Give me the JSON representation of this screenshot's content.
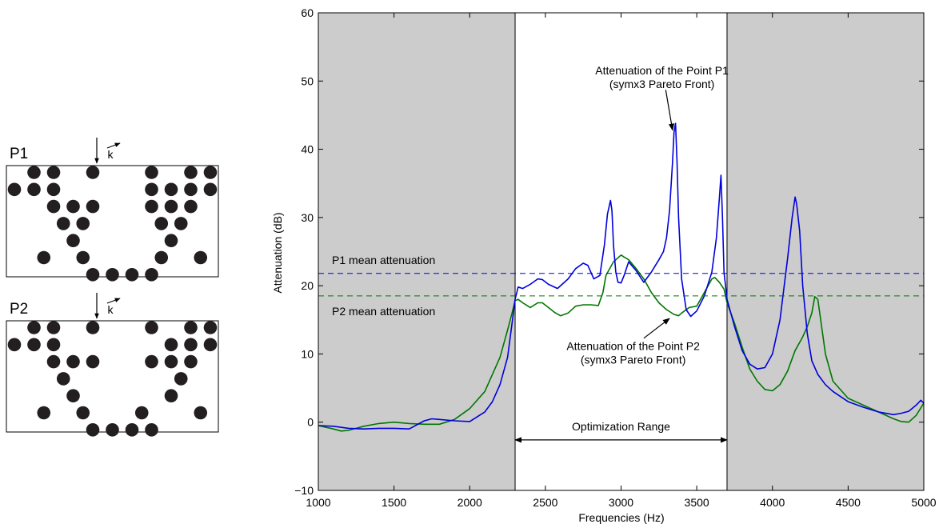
{
  "diagrams": [
    {
      "label": "P1",
      "wave_label": "k",
      "cylinders": [
        [
          1,
          0
        ],
        [
          2,
          0
        ],
        [
          4,
          0
        ],
        [
          7,
          0
        ],
        [
          9,
          0
        ],
        [
          10,
          0
        ],
        [
          0,
          1
        ],
        [
          1,
          1
        ],
        [
          2,
          1
        ],
        [
          7,
          1
        ],
        [
          8,
          1
        ],
        [
          9,
          1
        ],
        [
          10,
          1
        ],
        [
          2,
          2
        ],
        [
          3,
          2
        ],
        [
          4,
          2
        ],
        [
          7,
          2
        ],
        [
          8,
          2
        ],
        [
          9,
          2
        ],
        [
          2.5,
          3
        ],
        [
          3.5,
          3
        ],
        [
          7.5,
          3
        ],
        [
          8.5,
          3
        ],
        [
          3,
          4
        ],
        [
          8,
          4
        ],
        [
          1.5,
          5
        ],
        [
          3.5,
          5
        ],
        [
          7.5,
          5
        ],
        [
          9.5,
          5
        ],
        [
          4,
          6
        ],
        [
          5,
          6
        ],
        [
          6,
          6
        ],
        [
          7,
          6
        ]
      ]
    },
    {
      "label": "P2",
      "wave_label": "k",
      "cylinders": [
        [
          1,
          0
        ],
        [
          2,
          0
        ],
        [
          4,
          0
        ],
        [
          7,
          0
        ],
        [
          9,
          0
        ],
        [
          10,
          0
        ],
        [
          0,
          1
        ],
        [
          1,
          1
        ],
        [
          2,
          1
        ],
        [
          8,
          1
        ],
        [
          9,
          1
        ],
        [
          10,
          1
        ],
        [
          2,
          2
        ],
        [
          3,
          2
        ],
        [
          4,
          2
        ],
        [
          7,
          2
        ],
        [
          8,
          2
        ],
        [
          9,
          2
        ],
        [
          2.5,
          3
        ],
        [
          8.5,
          3
        ],
        [
          3,
          4
        ],
        [
          8,
          4
        ],
        [
          1.5,
          5
        ],
        [
          3.5,
          5
        ],
        [
          6.5,
          5
        ],
        [
          9.5,
          5
        ],
        [
          4,
          6
        ],
        [
          5,
          6
        ],
        [
          6,
          6
        ],
        [
          7,
          6
        ]
      ]
    }
  ],
  "chart_data": {
    "type": "line",
    "xlabel": "Frequencies (Hz)",
    "ylabel": "Attenuation (dB)",
    "xlim": [
      1000,
      5000
    ],
    "ylim": [
      -10,
      60
    ],
    "xticks": [
      1000,
      1500,
      2000,
      2500,
      3000,
      3500,
      4000,
      4500,
      5000
    ],
    "yticks": [
      -10,
      0,
      10,
      20,
      30,
      40,
      50,
      60
    ],
    "grid": false,
    "shaded_regions": [
      [
        1000,
        2300
      ],
      [
        3700,
        5000
      ]
    ],
    "shade_color": "#cccccc",
    "series": [
      {
        "name": "P1",
        "color": "#0000dd",
        "mean": 21.8,
        "x": [
          1000,
          1100,
          1200,
          1300,
          1400,
          1500,
          1600,
          1700,
          1750,
          1800,
          1900,
          2000,
          2100,
          2150,
          2200,
          2250,
          2280,
          2300,
          2320,
          2350,
          2400,
          2450,
          2480,
          2520,
          2580,
          2650,
          2700,
          2750,
          2780,
          2820,
          2860,
          2890,
          2910,
          2930,
          2940,
          2950,
          2965,
          2980,
          3000,
          3020,
          3050,
          3100,
          3150,
          3200,
          3250,
          3280,
          3300,
          3320,
          3340,
          3350,
          3360,
          3370,
          3380,
          3400,
          3430,
          3460,
          3500,
          3550,
          3600,
          3630,
          3650,
          3660,
          3670,
          3680,
          3700,
          3750,
          3800,
          3850,
          3900,
          3950,
          4000,
          4050,
          4100,
          4130,
          4150,
          4160,
          4180,
          4200,
          4230,
          4260,
          4300,
          4350,
          4400,
          4500,
          4600,
          4700,
          4800,
          4850,
          4900,
          4950,
          4980,
          5000
        ],
        "y": [
          -0.5,
          -0.6,
          -0.9,
          -1.0,
          -0.9,
          -0.9,
          -1.0,
          0.2,
          0.5,
          0.4,
          0.2,
          0.1,
          1.5,
          3.0,
          5.5,
          9.5,
          14.5,
          18.0,
          19.8,
          19.6,
          20.2,
          21.0,
          20.9,
          20.2,
          19.6,
          21.0,
          22.5,
          23.3,
          23.0,
          21.0,
          21.5,
          26.0,
          30.5,
          32.5,
          31.0,
          26.0,
          22.0,
          20.5,
          20.4,
          21.5,
          23.5,
          22.2,
          20.5,
          22.0,
          23.8,
          25.0,
          27.0,
          31.0,
          38.0,
          42.5,
          43.8,
          38.0,
          30.0,
          21.0,
          16.5,
          15.5,
          16.3,
          18.5,
          22.0,
          27.0,
          33.0,
          36.2,
          30.0,
          22.0,
          18.0,
          14.0,
          10.5,
          8.5,
          7.8,
          8.0,
          10.0,
          15.0,
          24.0,
          30.0,
          33.0,
          32.0,
          28.0,
          20.0,
          13.0,
          9.0,
          7.0,
          5.5,
          4.5,
          3.0,
          2.2,
          1.5,
          1.1,
          1.3,
          1.6,
          2.5,
          3.2,
          2.8
        ]
      },
      {
        "name": "P2",
        "color": "#007700",
        "mean": 18.5,
        "x": [
          1000,
          1100,
          1150,
          1200,
          1300,
          1400,
          1500,
          1600,
          1700,
          1800,
          1900,
          2000,
          2100,
          2200,
          2250,
          2280,
          2300,
          2320,
          2350,
          2400,
          2450,
          2480,
          2520,
          2560,
          2600,
          2650,
          2700,
          2750,
          2800,
          2850,
          2880,
          2900,
          2950,
          3000,
          3020,
          3050,
          3100,
          3150,
          3200,
          3250,
          3300,
          3350,
          3380,
          3400,
          3450,
          3500,
          3550,
          3600,
          3620,
          3650,
          3680,
          3700,
          3750,
          3800,
          3850,
          3900,
          3950,
          4000,
          4050,
          4100,
          4150,
          4200,
          4230,
          4260,
          4280,
          4300,
          4350,
          4400,
          4500,
          4600,
          4700,
          4800,
          4850,
          4900,
          4950,
          5000
        ],
        "y": [
          -0.5,
          -1.0,
          -1.3,
          -1.2,
          -0.6,
          -0.2,
          0.0,
          -0.2,
          -0.3,
          -0.3,
          0.4,
          2.0,
          4.5,
          9.5,
          13.5,
          16.0,
          17.8,
          18.0,
          17.5,
          16.8,
          17.5,
          17.5,
          16.8,
          16.1,
          15.6,
          16.0,
          17.0,
          17.2,
          17.2,
          17.1,
          19.0,
          21.5,
          23.5,
          24.5,
          24.2,
          23.8,
          22.5,
          21.0,
          19.0,
          17.5,
          16.5,
          15.8,
          15.6,
          16.0,
          16.8,
          17.0,
          19.0,
          21.0,
          21.2,
          20.5,
          19.5,
          17.5,
          14.5,
          11.0,
          7.8,
          6.0,
          4.8,
          4.6,
          5.5,
          7.5,
          10.5,
          12.5,
          14.0,
          16.0,
          18.4,
          18.0,
          10.0,
          6.0,
          3.5,
          2.5,
          1.5,
          0.5,
          0.1,
          0.0,
          1.0,
          2.8
        ]
      }
    ],
    "annotations": [
      {
        "id": "range",
        "text": "Optimization Range",
        "text_x": 3000,
        "text_y": -1.2,
        "arrow_from": [
          2300,
          -2.6
        ],
        "arrow_to": [
          3700,
          -2.6
        ],
        "double_headed": true
      },
      {
        "id": "p1-peak",
        "text_line1": "Attenuation of the Point P1",
        "text_line2": "(symx3 Pareto Front)",
        "text_x": 3270,
        "text_y": 51,
        "arrow_from": [
          3295,
          48.7
        ],
        "arrow_to": [
          3340,
          42.8
        ]
      },
      {
        "id": "p2-curve",
        "text_line1": "Attenuation of the Point P2",
        "text_line2": "(symx3 Pareto Front)",
        "text_x": 3080,
        "text_y": 10.6,
        "arrow_from": [
          3150,
          12.3
        ],
        "arrow_to": [
          3320,
          15.2
        ]
      },
      {
        "id": "p1-mean",
        "text": "P1 mean attenuation",
        "text_x": 1090,
        "text_y": 23.2
      },
      {
        "id": "p2-mean",
        "text": "P2 mean attenuation",
        "text_x": 1090,
        "text_y": 15.7
      }
    ]
  }
}
